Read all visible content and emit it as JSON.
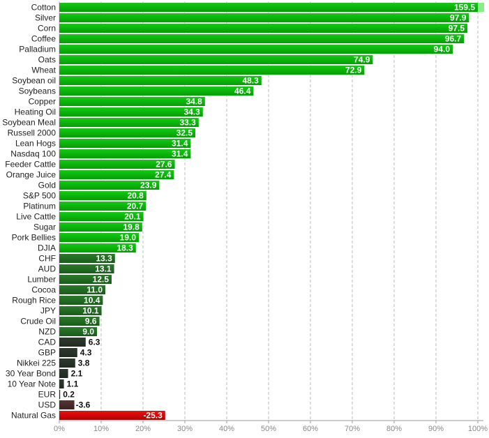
{
  "chart_data": {
    "type": "bar",
    "orientation": "horizontal",
    "title": "",
    "xlabel": "",
    "ylabel": "",
    "xlim": [
      0,
      100
    ],
    "x_ticks": [
      "0%",
      "10%",
      "20%",
      "30%",
      "40%",
      "50%",
      "60%",
      "70%",
      "80%",
      "90%",
      "100%"
    ],
    "grid": true,
    "categories": [
      "Cotton",
      "Silver",
      "Corn",
      "Coffee",
      "Palladium",
      "Oats",
      "Wheat",
      "Soybean oil",
      "Soybeans",
      "Copper",
      "Heating Oil",
      "Soybean Meal",
      "Russell 2000",
      "Lean Hogs",
      "Nasdaq 100",
      "Feeder Cattle",
      "Orange Juice",
      "Gold",
      "S&P 500",
      "Platinum",
      "Live Cattle",
      "Sugar",
      "Pork Bellies",
      "DJIA",
      "CHF",
      "AUD",
      "Lumber",
      "Cocoa",
      "Rough Rice",
      "JPY",
      "Crude Oil",
      "NZD",
      "CAD",
      "GBP",
      "Nikkei 225",
      "30 Year Bond",
      "10 Year Note",
      "EUR",
      "USD",
      "Natural Gas"
    ],
    "values": [
      159.5,
      97.9,
      97.5,
      96.7,
      94.0,
      74.9,
      72.9,
      48.3,
      46.4,
      34.8,
      34.3,
      33.3,
      32.5,
      31.4,
      31.4,
      27.6,
      27.4,
      23.9,
      20.8,
      20.7,
      20.1,
      19.8,
      19.0,
      18.3,
      13.3,
      13.1,
      12.5,
      11.0,
      10.4,
      10.1,
      9.6,
      9.0,
      6.3,
      4.3,
      3.8,
      2.1,
      1.1,
      0.2,
      -3.6,
      -25.3
    ],
    "value_labels": [
      "159.5",
      "97.9",
      "97.5",
      "96.7",
      "94.0",
      "74.9",
      "72.9",
      "48.3",
      "46.4",
      "34.8",
      "34.3",
      "33.3",
      "32.5",
      "31.4",
      "31.4",
      "27.6",
      "27.4",
      "23.9",
      "20.8",
      "20.7",
      "20.1",
      "19.8",
      "19.0",
      "18.3",
      "13.3",
      "13.1",
      "12.5",
      "11.0",
      "10.4",
      "10.1",
      "9.6",
      "9.0",
      "6.3",
      "4.3",
      "3.8",
      "2.1",
      "1.1",
      "0.2",
      "-3.6",
      "-25.3"
    ],
    "colors": {
      "strong_positive": "#11cc11",
      "moderate_positive": "#2a7a2a",
      "weak_positive": "#2e3a2e",
      "small_negative": "#553333",
      "strong_negative": "#ee1111",
      "overflow": "#88ee88",
      "grid": "#bbbbbb"
    }
  }
}
